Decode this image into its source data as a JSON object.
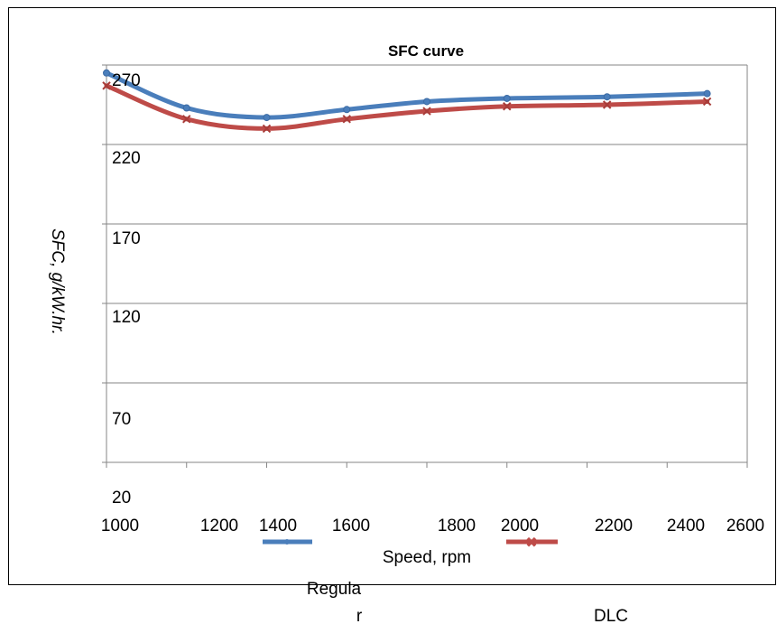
{
  "chart_data": {
    "type": "line",
    "title": "SFC curve",
    "xlabel": "Speed, rpm",
    "ylabel": "SFC,    g/kW.hr.",
    "x_ticks": [
      "1000",
      "1200",
      "1400",
      "1600",
      "1800",
      "2000",
      "2200",
      "2400",
      "2600"
    ],
    "y_ticks": [
      "20",
      "70",
      "120",
      "170",
      "220",
      "270"
    ],
    "xlim": [
      1000,
      2600
    ],
    "ylim": [
      20,
      270
    ],
    "grid": "horizontal",
    "legend_position": "bottom",
    "series": [
      {
        "name": "Regular",
        "legend_text_parts": [
          "Regula",
          "r"
        ],
        "color": "#4a7ebb",
        "x": [
          1000,
          1200,
          1400,
          1600,
          1800,
          2000,
          2250,
          2500
        ],
        "y": [
          265,
          243,
          237,
          242,
          247,
          249,
          250,
          252
        ]
      },
      {
        "name": "DLC",
        "color": "#be4b48",
        "x": [
          1000,
          1200,
          1400,
          1600,
          1800,
          2000,
          2250,
          2500
        ],
        "y": [
          257,
          236,
          230,
          236,
          241,
          244,
          245,
          247
        ]
      }
    ]
  }
}
